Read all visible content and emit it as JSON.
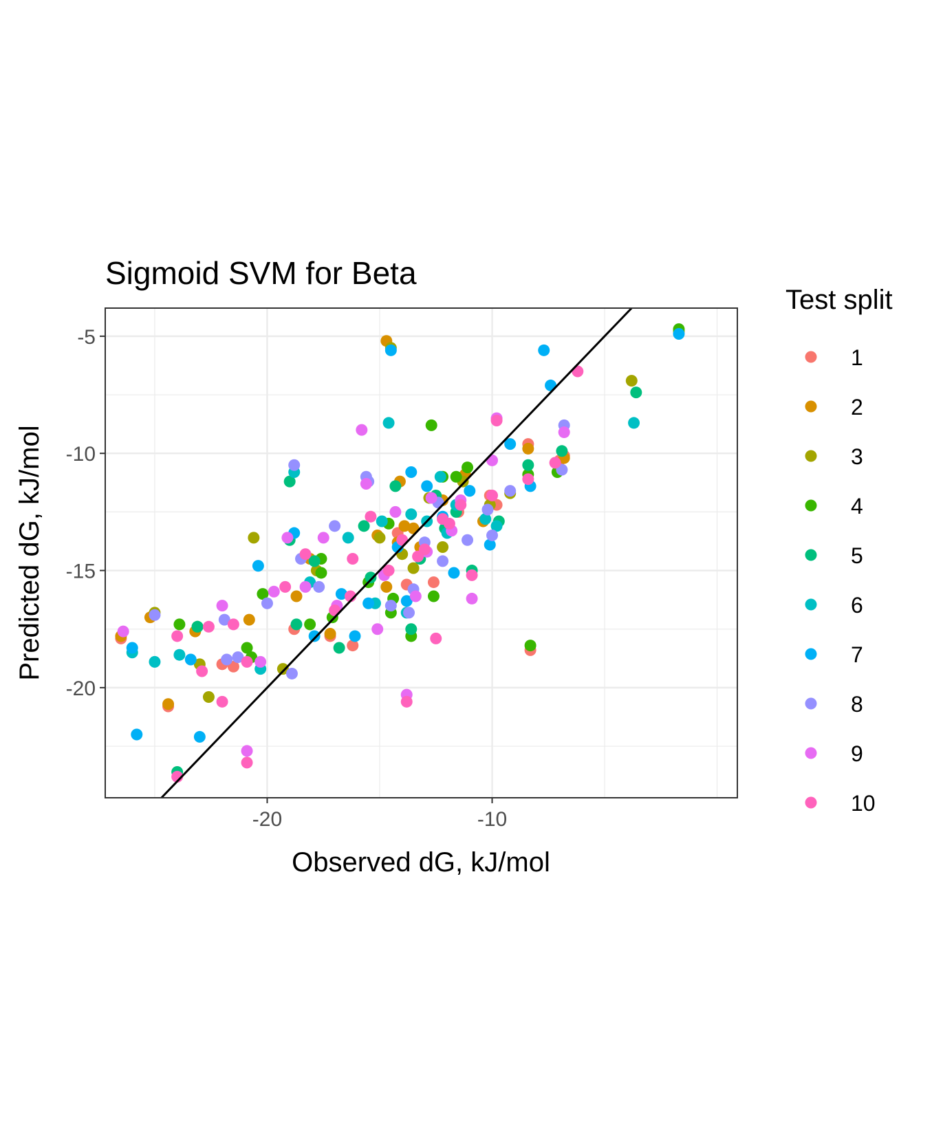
{
  "chart_data": {
    "type": "scatter",
    "title": "Sigmoid SVM for Beta",
    "xlabel": "Observed dG, kJ/mol",
    "ylabel": "Predicted dG, kJ/mol",
    "xlim": [
      -27.2,
      0.9
    ],
    "ylim": [
      -24.7,
      -3.8
    ],
    "x_ticks": [
      -20,
      -10
    ],
    "x_tick_labels": [
      "-20",
      "-10"
    ],
    "y_ticks": [
      -5,
      -10,
      -15,
      -20
    ],
    "y_tick_labels": [
      "-5",
      "-10",
      "-15",
      "-20"
    ],
    "grid": true,
    "reference_line": {
      "slope": 1,
      "intercept": 0
    },
    "legend": {
      "title": "Test split",
      "placement": "right"
    },
    "series": [
      {
        "name": "1",
        "color": "#F8766D",
        "points": [
          [
            -26.5,
            -17.9
          ],
          [
            -24.4,
            -20.8
          ],
          [
            -22.0,
            -19.0
          ],
          [
            -21.5,
            -19.1
          ],
          [
            -18.8,
            -17.5
          ],
          [
            -16.2,
            -18.2
          ],
          [
            -14.2,
            -13.4
          ],
          [
            -12.6,
            -15.5
          ],
          [
            -11.5,
            -12.5
          ],
          [
            -10.1,
            -11.8
          ],
          [
            -8.3,
            -18.4
          ],
          [
            -8.4,
            -9.6
          ],
          [
            -7.0,
            -10.3
          ],
          [
            -6.8,
            -10.1
          ],
          [
            -17.2,
            -17.8
          ],
          [
            -13.8,
            -15.6
          ],
          [
            -9.8,
            -12.2
          ]
        ]
      },
      {
        "name": "2",
        "color": "#D89000",
        "points": [
          [
            -26.5,
            -17.8
          ],
          [
            -25.2,
            -17.0
          ],
          [
            -24.4,
            -20.7
          ],
          [
            -23.2,
            -17.6
          ],
          [
            -20.8,
            -17.1
          ],
          [
            -18.7,
            -16.1
          ],
          [
            -18.1,
            -14.5
          ],
          [
            -17.2,
            -17.7
          ],
          [
            -14.7,
            -5.2
          ],
          [
            -14.7,
            -15.7
          ],
          [
            -14.1,
            -11.2
          ],
          [
            -13.9,
            -13.1
          ],
          [
            -13.5,
            -13.2
          ],
          [
            -12.2,
            -12.0
          ],
          [
            -11.2,
            -10.9
          ],
          [
            -10.4,
            -12.9
          ],
          [
            -8.4,
            -9.8
          ],
          [
            -6.8,
            -10.2
          ],
          [
            -15.1,
            -13.5
          ],
          [
            -14.2,
            -13.8
          ],
          [
            -13.2,
            -14.0
          ]
        ]
      },
      {
        "name": "3",
        "color": "#A3A500",
        "points": [
          [
            -25.0,
            -16.8
          ],
          [
            -23.0,
            -19.0
          ],
          [
            -22.6,
            -20.4
          ],
          [
            -20.6,
            -13.6
          ],
          [
            -19.3,
            -19.2
          ],
          [
            -17.8,
            -15.0
          ],
          [
            -14.5,
            -5.5
          ],
          [
            -14.0,
            -14.3
          ],
          [
            -13.5,
            -14.9
          ],
          [
            -12.2,
            -14.0
          ],
          [
            -11.3,
            -11.2
          ],
          [
            -10.1,
            -12.2
          ],
          [
            -9.2,
            -11.7
          ],
          [
            -3.8,
            -6.9
          ],
          [
            -1.7,
            -4.8
          ],
          [
            -15.0,
            -13.6
          ],
          [
            -12.8,
            -11.9
          ]
        ]
      },
      {
        "name": "4",
        "color": "#39B600",
        "points": [
          [
            -23.9,
            -17.3
          ],
          [
            -23.1,
            -17.4
          ],
          [
            -20.9,
            -18.3
          ],
          [
            -20.7,
            -18.7
          ],
          [
            -20.2,
            -16.0
          ],
          [
            -18.1,
            -17.3
          ],
          [
            -17.6,
            -14.5
          ],
          [
            -17.6,
            -15.1
          ],
          [
            -17.1,
            -17.0
          ],
          [
            -15.5,
            -15.5
          ],
          [
            -14.5,
            -16.8
          ],
          [
            -14.4,
            -16.2
          ],
          [
            -13.6,
            -17.8
          ],
          [
            -12.7,
            -8.8
          ],
          [
            -12.2,
            -11.0
          ],
          [
            -11.6,
            -11.0
          ],
          [
            -11.1,
            -10.6
          ],
          [
            -8.4,
            -10.9
          ],
          [
            -8.3,
            -18.2
          ],
          [
            -7.1,
            -10.8
          ],
          [
            -1.7,
            -4.7
          ],
          [
            -12.6,
            -16.1
          ],
          [
            -14.6,
            -13.0
          ]
        ]
      },
      {
        "name": "5",
        "color": "#00BF7D",
        "points": [
          [
            -24.0,
            -23.6
          ],
          [
            -23.1,
            -17.4
          ],
          [
            -19.0,
            -13.7
          ],
          [
            -19.0,
            -11.2
          ],
          [
            -18.7,
            -17.3
          ],
          [
            -17.9,
            -14.6
          ],
          [
            -15.7,
            -13.1
          ],
          [
            -15.4,
            -15.3
          ],
          [
            -14.3,
            -11.4
          ],
          [
            -13.2,
            -14.5
          ],
          [
            -12.5,
            -11.8
          ],
          [
            -12.1,
            -13.2
          ],
          [
            -11.6,
            -12.5
          ],
          [
            -9.7,
            -12.9
          ],
          [
            -8.4,
            -10.5
          ],
          [
            -6.9,
            -9.9
          ],
          [
            -3.6,
            -7.4
          ],
          [
            -16.8,
            -18.3
          ],
          [
            -13.6,
            -17.5
          ],
          [
            -10.9,
            -15.0
          ]
        ]
      },
      {
        "name": "6",
        "color": "#00BFC4",
        "points": [
          [
            -26.0,
            -18.5
          ],
          [
            -25.0,
            -18.9
          ],
          [
            -23.9,
            -18.6
          ],
          [
            -20.3,
            -19.2
          ],
          [
            -18.8,
            -10.8
          ],
          [
            -18.1,
            -15.5
          ],
          [
            -16.4,
            -13.6
          ],
          [
            -15.2,
            -16.4
          ],
          [
            -14.6,
            -8.7
          ],
          [
            -13.8,
            -16.8
          ],
          [
            -13.6,
            -12.6
          ],
          [
            -12.9,
            -12.9
          ],
          [
            -12.3,
            -11.0
          ],
          [
            -11.6,
            -12.2
          ],
          [
            -10.3,
            -12.8
          ],
          [
            -9.8,
            -13.1
          ],
          [
            -3.7,
            -8.7
          ],
          [
            -12.0,
            -13.4
          ],
          [
            -14.9,
            -12.9
          ]
        ]
      },
      {
        "name": "7",
        "color": "#00B0F6",
        "points": [
          [
            -26.0,
            -18.3
          ],
          [
            -25.8,
            -22.0
          ],
          [
            -23.4,
            -18.8
          ],
          [
            -23.0,
            -22.1
          ],
          [
            -20.4,
            -14.8
          ],
          [
            -18.8,
            -13.4
          ],
          [
            -17.9,
            -17.8
          ],
          [
            -16.7,
            -16.0
          ],
          [
            -16.1,
            -17.8
          ],
          [
            -15.5,
            -16.4
          ],
          [
            -14.5,
            -5.6
          ],
          [
            -13.8,
            -16.3
          ],
          [
            -13.6,
            -10.8
          ],
          [
            -12.9,
            -11.4
          ],
          [
            -11.7,
            -15.1
          ],
          [
            -11.0,
            -11.6
          ],
          [
            -9.2,
            -9.6
          ],
          [
            -8.3,
            -11.4
          ],
          [
            -7.7,
            -5.6
          ],
          [
            -7.4,
            -7.1
          ],
          [
            -1.7,
            -4.9
          ],
          [
            -14.2,
            -14.0
          ],
          [
            -12.2,
            -12.7
          ],
          [
            -10.1,
            -13.9
          ]
        ]
      },
      {
        "name": "8",
        "color": "#9590FF",
        "points": [
          [
            -25.0,
            -16.9
          ],
          [
            -21.9,
            -17.1
          ],
          [
            -21.8,
            -18.8
          ],
          [
            -21.3,
            -18.7
          ],
          [
            -20.0,
            -16.4
          ],
          [
            -18.9,
            -19.4
          ],
          [
            -18.8,
            -10.5
          ],
          [
            -18.5,
            -14.5
          ],
          [
            -17.7,
            -15.7
          ],
          [
            -17.0,
            -13.1
          ],
          [
            -15.5,
            -11.2
          ],
          [
            -14.5,
            -16.5
          ],
          [
            -13.7,
            -16.8
          ],
          [
            -13.5,
            -15.8
          ],
          [
            -13.0,
            -13.8
          ],
          [
            -12.2,
            -14.6
          ],
          [
            -11.1,
            -13.7
          ],
          [
            -10.2,
            -12.4
          ],
          [
            -10.0,
            -13.5
          ],
          [
            -9.2,
            -11.6
          ],
          [
            -6.8,
            -8.8
          ],
          [
            -6.9,
            -10.7
          ],
          [
            -15.6,
            -11.0
          ],
          [
            -12.4,
            -12.1
          ]
        ]
      },
      {
        "name": "9",
        "color": "#E76BF3",
        "points": [
          [
            -26.4,
            -17.6
          ],
          [
            -22.0,
            -16.5
          ],
          [
            -20.9,
            -22.7
          ],
          [
            -20.3,
            -18.9
          ],
          [
            -19.7,
            -15.9
          ],
          [
            -19.1,
            -13.6
          ],
          [
            -18.3,
            -15.7
          ],
          [
            -17.5,
            -13.6
          ],
          [
            -16.9,
            -16.5
          ],
          [
            -15.8,
            -9.0
          ],
          [
            -15.6,
            -11.3
          ],
          [
            -15.1,
            -17.5
          ],
          [
            -14.8,
            -15.2
          ],
          [
            -14.3,
            -12.5
          ],
          [
            -13.8,
            -20.3
          ],
          [
            -13.4,
            -16.1
          ],
          [
            -12.7,
            -11.9
          ],
          [
            -11.4,
            -12.0
          ],
          [
            -10.9,
            -16.2
          ],
          [
            -10.0,
            -10.3
          ],
          [
            -9.8,
            -8.5
          ],
          [
            -6.8,
            -9.1
          ],
          [
            -12.9,
            -14.2
          ],
          [
            -11.8,
            -13.3
          ]
        ]
      },
      {
        "name": "10",
        "color": "#FF62BC",
        "points": [
          [
            -24.0,
            -17.8
          ],
          [
            -24.0,
            -23.8
          ],
          [
            -22.9,
            -19.3
          ],
          [
            -22.6,
            -17.4
          ],
          [
            -22.0,
            -20.6
          ],
          [
            -21.5,
            -17.3
          ],
          [
            -20.9,
            -23.2
          ],
          [
            -20.9,
            -18.9
          ],
          [
            -19.2,
            -15.7
          ],
          [
            -18.3,
            -14.3
          ],
          [
            -17.0,
            -16.7
          ],
          [
            -16.3,
            -16.1
          ],
          [
            -16.2,
            -14.5
          ],
          [
            -15.4,
            -12.7
          ],
          [
            -14.6,
            -15.0
          ],
          [
            -14.0,
            -13.7
          ],
          [
            -13.8,
            -20.6
          ],
          [
            -13.3,
            -14.4
          ],
          [
            -12.5,
            -17.9
          ],
          [
            -11.9,
            -13.0
          ],
          [
            -10.9,
            -15.2
          ],
          [
            -10.0,
            -11.8
          ],
          [
            -9.8,
            -8.6
          ],
          [
            -8.4,
            -11.1
          ],
          [
            -7.2,
            -10.4
          ],
          [
            -6.2,
            -6.5
          ],
          [
            -12.2,
            -12.8
          ],
          [
            -13.0,
            -14.1
          ],
          [
            -11.4,
            -12.2
          ]
        ]
      }
    ]
  }
}
